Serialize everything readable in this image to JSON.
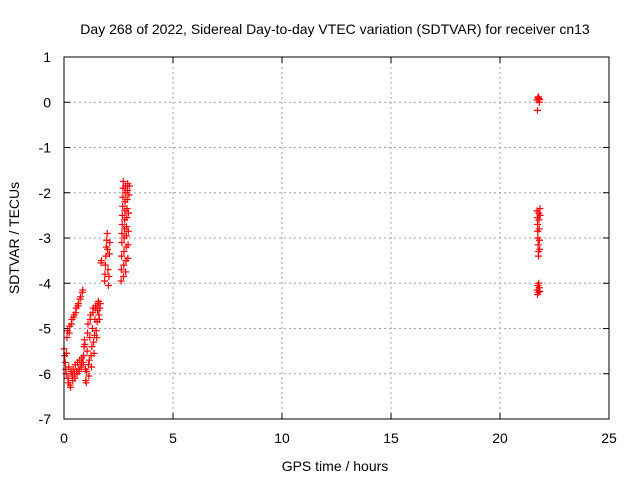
{
  "chart_data": {
    "type": "scatter",
    "title": "Day 268 of 2022, Sidereal Day-to-day VTEC variation (SDTVAR) for receiver cn13",
    "xlabel": "GPS time / hours",
    "ylabel": "SDTVAR / TECUs",
    "xlim": [
      0,
      25
    ],
    "ylim": [
      -7,
      1
    ],
    "x_ticks": [
      0,
      5,
      10,
      15,
      20,
      25
    ],
    "y_ticks": [
      -7,
      -6,
      -5,
      -4,
      -3,
      -2,
      -1,
      0,
      1
    ],
    "grid": true,
    "marker": "plus",
    "colors": {
      "series": "#ff0000",
      "grid": "#a0a0a0",
      "axes": "#000000"
    },
    "series": [
      {
        "points": [
          [
            0.0,
            -5.45
          ],
          [
            0.03,
            -5.6
          ],
          [
            0.06,
            -5.75
          ],
          [
            0.08,
            -5.9
          ],
          [
            0.1,
            -6.0
          ],
          [
            0.12,
            -5.55
          ],
          [
            0.14,
            -5.2
          ],
          [
            0.16,
            -5.05
          ],
          [
            0.18,
            -6.1
          ],
          [
            0.2,
            -6.2
          ],
          [
            0.22,
            -5.85
          ],
          [
            0.24,
            -5.1
          ],
          [
            0.26,
            -4.95
          ],
          [
            0.28,
            -6.25
          ],
          [
            0.3,
            -6.3
          ],
          [
            0.32,
            -5.95
          ],
          [
            0.34,
            -4.9
          ],
          [
            0.36,
            -4.8
          ],
          [
            0.38,
            -6.05
          ],
          [
            0.4,
            -6.15
          ],
          [
            0.42,
            -5.9
          ],
          [
            0.44,
            -4.75
          ],
          [
            0.46,
            -4.7
          ],
          [
            0.48,
            -6.0
          ],
          [
            0.5,
            -6.1
          ],
          [
            0.52,
            -5.8
          ],
          [
            0.54,
            -4.65
          ],
          [
            0.56,
            -4.55
          ],
          [
            0.58,
            -5.95
          ],
          [
            0.6,
            -6.0
          ],
          [
            0.62,
            -5.75
          ],
          [
            0.64,
            -4.5
          ],
          [
            0.66,
            -4.45
          ],
          [
            0.68,
            -5.9
          ],
          [
            0.7,
            -5.95
          ],
          [
            0.72,
            -5.7
          ],
          [
            0.74,
            -4.35
          ],
          [
            0.76,
            -4.3
          ],
          [
            0.78,
            -5.85
          ],
          [
            0.8,
            -5.8
          ],
          [
            0.82,
            -5.65
          ],
          [
            0.84,
            -4.2
          ],
          [
            0.86,
            -4.15
          ],
          [
            0.88,
            -5.75
          ],
          [
            0.9,
            -5.6
          ],
          [
            0.92,
            -5.4
          ],
          [
            0.94,
            -5.25
          ],
          [
            0.96,
            -5.35
          ],
          [
            0.98,
            -5.9
          ],
          [
            1.0,
            -6.15
          ],
          [
            1.02,
            -6.2
          ],
          [
            1.04,
            -5.95
          ],
          [
            1.06,
            -5.5
          ],
          [
            1.08,
            -5.1
          ],
          [
            1.1,
            -4.9
          ],
          [
            1.12,
            -5.8
          ],
          [
            1.14,
            -6.05
          ],
          [
            1.16,
            -5.7
          ],
          [
            1.18,
            -5.2
          ],
          [
            1.2,
            -4.8
          ],
          [
            1.22,
            -4.7
          ],
          [
            1.24,
            -5.6
          ],
          [
            1.26,
            -5.85
          ],
          [
            1.28,
            -5.4
          ],
          [
            1.3,
            -5.0
          ],
          [
            1.32,
            -4.65
          ],
          [
            1.34,
            -4.55
          ],
          [
            1.36,
            -5.3
          ],
          [
            1.38,
            -5.55
          ],
          [
            1.4,
            -5.15
          ],
          [
            1.42,
            -4.8
          ],
          [
            1.44,
            -4.55
          ],
          [
            1.46,
            -4.5
          ],
          [
            1.48,
            -5.05
          ],
          [
            1.5,
            -5.2
          ],
          [
            1.52,
            -4.85
          ],
          [
            1.54,
            -4.6
          ],
          [
            1.56,
            -4.45
          ],
          [
            1.58,
            -4.4
          ],
          [
            1.6,
            -4.7
          ],
          [
            1.62,
            -4.8
          ],
          [
            1.64,
            -4.55
          ],
          [
            1.66,
            -4.45
          ],
          [
            1.7,
            -3.55
          ],
          [
            1.72,
            -3.5
          ],
          [
            1.86,
            -3.95
          ],
          [
            1.88,
            -3.8
          ],
          [
            1.9,
            -3.6
          ],
          [
            1.92,
            -3.4
          ],
          [
            1.94,
            -3.2
          ],
          [
            1.96,
            -3.05
          ],
          [
            1.98,
            -2.9
          ],
          [
            2.0,
            -3.25
          ],
          [
            2.02,
            -3.7
          ],
          [
            2.04,
            -4.05
          ],
          [
            2.06,
            -3.85
          ],
          [
            2.08,
            -3.35
          ],
          [
            2.1,
            -3.1
          ],
          [
            2.62,
            -3.95
          ],
          [
            2.63,
            -3.7
          ],
          [
            2.64,
            -3.4
          ],
          [
            2.65,
            -3.1
          ],
          [
            2.66,
            -2.9
          ],
          [
            2.67,
            -2.7
          ],
          [
            2.68,
            -2.5
          ],
          [
            2.69,
            -2.3
          ],
          [
            2.7,
            -2.1
          ],
          [
            2.71,
            -1.9
          ],
          [
            2.72,
            -1.75
          ],
          [
            2.73,
            -3.85
          ],
          [
            2.74,
            -3.6
          ],
          [
            2.75,
            -3.3
          ],
          [
            2.76,
            -3.0
          ],
          [
            2.77,
            -2.8
          ],
          [
            2.78,
            -2.6
          ],
          [
            2.79,
            -2.4
          ],
          [
            2.8,
            -2.2
          ],
          [
            2.81,
            -2.0
          ],
          [
            2.82,
            -1.85
          ],
          [
            2.83,
            -3.75
          ],
          [
            2.84,
            -3.5
          ],
          [
            2.85,
            -3.2
          ],
          [
            2.86,
            -2.95
          ],
          [
            2.87,
            -2.75
          ],
          [
            2.88,
            -2.55
          ],
          [
            2.89,
            -2.35
          ],
          [
            2.9,
            -2.15
          ],
          [
            2.91,
            -1.95
          ],
          [
            2.92,
            -1.8
          ],
          [
            2.93,
            -3.45
          ],
          [
            2.94,
            -3.15
          ],
          [
            2.95,
            -2.85
          ],
          [
            2.96,
            -2.45
          ],
          [
            2.98,
            -2.05
          ],
          [
            3.0,
            -1.85
          ],
          [
            21.7,
            0.05
          ],
          [
            21.72,
            -0.18
          ],
          [
            21.74,
            0.1
          ],
          [
            21.76,
            0.12
          ],
          [
            21.78,
            0.08
          ],
          [
            21.8,
            0.0
          ],
          [
            21.82,
            0.06
          ],
          [
            21.7,
            -2.4
          ],
          [
            21.71,
            -2.55
          ],
          [
            21.72,
            -2.7
          ],
          [
            21.73,
            -2.85
          ],
          [
            21.74,
            -3.0
          ],
          [
            21.75,
            -3.15
          ],
          [
            21.76,
            -3.3
          ],
          [
            21.77,
            -3.4
          ],
          [
            21.78,
            -2.45
          ],
          [
            21.79,
            -2.6
          ],
          [
            21.8,
            -2.8
          ],
          [
            21.81,
            -3.05
          ],
          [
            21.82,
            -3.25
          ],
          [
            21.83,
            -2.35
          ],
          [
            21.84,
            -2.5
          ],
          [
            21.7,
            -4.15
          ],
          [
            21.72,
            -4.25
          ],
          [
            21.74,
            -4.05
          ],
          [
            21.76,
            -4.2
          ],
          [
            21.78,
            -4.0
          ],
          [
            21.8,
            -4.1
          ],
          [
            21.82,
            -4.18
          ]
        ]
      }
    ]
  }
}
